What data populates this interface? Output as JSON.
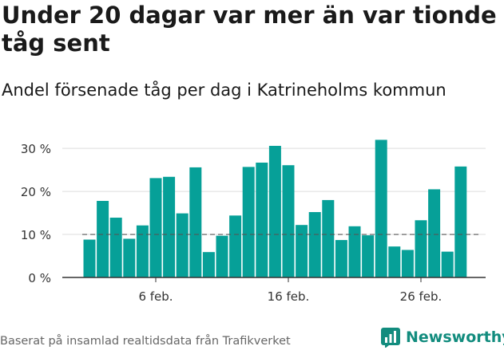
{
  "title": "Under 20 dagar var mer än var tionde tåg sent",
  "subtitle": "Andel försenade tåg per dag i Katrineholms kommun",
  "source": "Baserat på insamlad realtidsdata från Trafikverket",
  "brand": {
    "name": "Newsworthy",
    "icon": "newsworthy-logo-icon",
    "color": "#128c7e"
  },
  "colors": {
    "bar": "#06a098",
    "reference_line": "#555555",
    "grid": "#dddddd",
    "axis": "#333333"
  },
  "chart_data": {
    "type": "bar",
    "x": [
      "1 feb.",
      "2 feb.",
      "3 feb.",
      "4 feb.",
      "5 feb.",
      "6 feb.",
      "7 feb.",
      "8 feb.",
      "9 feb.",
      "10 feb.",
      "11 feb.",
      "12 feb.",
      "13 feb.",
      "14 feb.",
      "15 feb.",
      "16 feb.",
      "17 feb.",
      "18 feb.",
      "19 feb.",
      "20 feb.",
      "21 feb.",
      "22 feb.",
      "23 feb.",
      "24 feb.",
      "25 feb.",
      "26 feb.",
      "27 feb.",
      "28 feb.",
      "29 feb."
    ],
    "values": [
      8.8,
      17.8,
      13.9,
      9.0,
      12.1,
      23.1,
      23.4,
      14.9,
      25.6,
      5.9,
      9.7,
      14.4,
      25.7,
      26.7,
      30.6,
      26.1,
      12.2,
      15.2,
      18.0,
      8.7,
      11.9,
      9.8,
      32.0,
      7.2,
      6.4,
      13.3,
      20.5,
      6.0,
      25.8
    ],
    "reference_line": 10,
    "yticks": [
      0,
      10,
      20,
      30
    ],
    "ytick_labels": [
      "0 %",
      "10 %",
      "20 %",
      "30 %"
    ],
    "xtick_labels": [
      "6 feb.",
      "16 feb.",
      "26 feb."
    ],
    "xtick_indices": [
      5,
      15,
      25
    ],
    "ylim": [
      0,
      33
    ],
    "grid": true
  }
}
